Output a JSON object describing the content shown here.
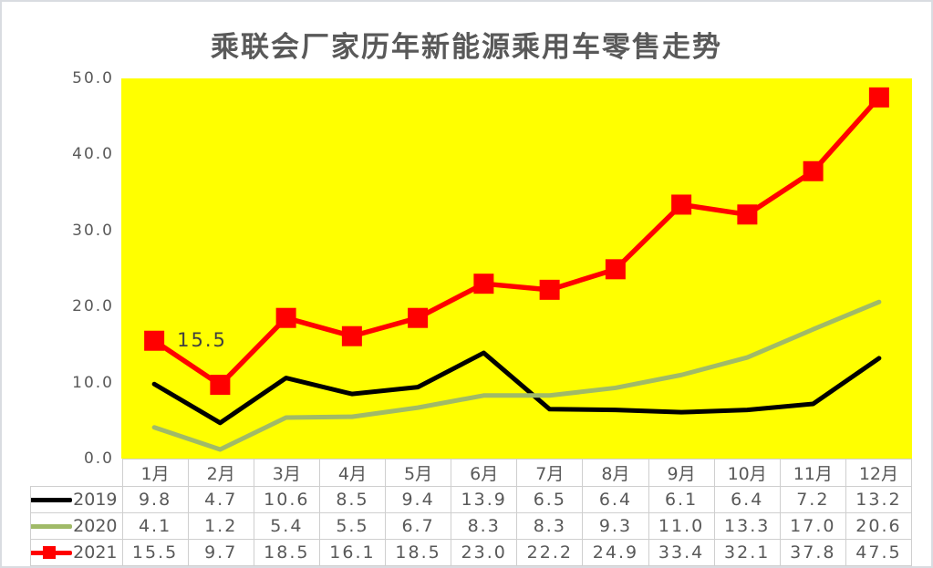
{
  "title": "乘联会厂家历年新能源乘用车零售走势",
  "colors": {
    "plot_background": "#FFFF00",
    "text": "#595959",
    "table_border": "#cfcfcf",
    "series_2019": "#000000",
    "series_2020": "#A0BA68",
    "series_2021": "#FF0000"
  },
  "chart_data": {
    "type": "line",
    "title": "乘联会厂家历年新能源乘用车零售走势",
    "categories": [
      "1月",
      "2月",
      "3月",
      "4月",
      "5月",
      "6月",
      "7月",
      "8月",
      "9月",
      "10月",
      "11月",
      "12月"
    ],
    "series": [
      {
        "name": "2019",
        "color": "#000000",
        "marker": "none",
        "values": [
          9.8,
          4.7,
          10.6,
          8.5,
          9.4,
          13.9,
          6.5,
          6.4,
          6.1,
          6.4,
          7.2,
          13.2
        ]
      },
      {
        "name": "2020",
        "color": "#A0BA68",
        "marker": "none",
        "values": [
          4.1,
          1.2,
          5.4,
          5.5,
          6.7,
          8.3,
          8.3,
          9.3,
          11.0,
          13.3,
          17.0,
          20.6
        ]
      },
      {
        "name": "2021",
        "color": "#FF0000",
        "marker": "square",
        "values": [
          15.5,
          9.7,
          18.5,
          16.1,
          18.5,
          23.0,
          22.2,
          24.9,
          33.4,
          32.1,
          37.8,
          47.5
        ]
      }
    ],
    "ylim": [
      0,
      50
    ],
    "ytick_labels": [
      "50.0",
      "40.0",
      "30.0",
      "20.0",
      "10.0",
      "0.0"
    ],
    "xlabel": "",
    "ylabel": "",
    "grid": false,
    "plot_background": "#FFFF00",
    "legend_position": "table-left",
    "annotation": {
      "text": "15.5",
      "series": "2021",
      "index": 0
    }
  }
}
